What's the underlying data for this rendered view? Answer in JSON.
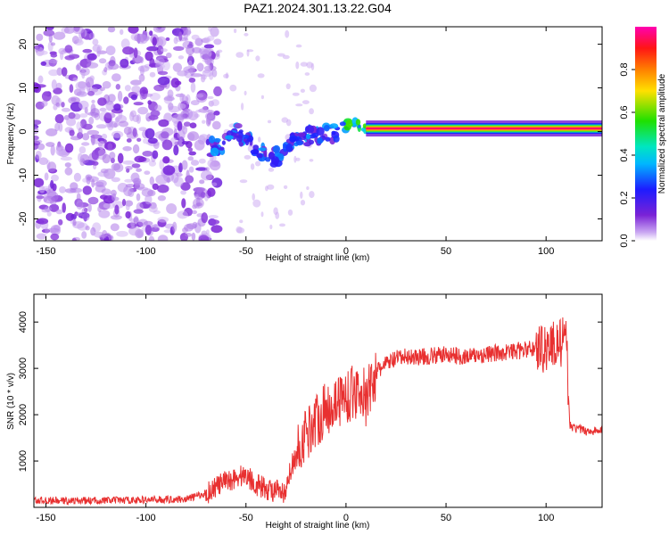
{
  "title": "PAZ1.2024.301.13.22.G04",
  "colors": {
    "spectrogram_low": "#8a2be2",
    "snr_line": "#e83030",
    "frame": "#000000"
  },
  "chart_data": [
    {
      "type": "heatmap",
      "title": "PAZ1.2024.301.13.22.G04",
      "xlabel": "Height of straight line (km)",
      "ylabel": "Frequency (Hz)",
      "xlim": [
        -156,
        128
      ],
      "ylim": [
        -25,
        24
      ],
      "xticks": [
        "-150",
        "-100",
        "-50",
        "0",
        "50",
        "100"
      ],
      "yticks": [
        "20",
        "10",
        "0",
        "-10",
        "-20"
      ],
      "colorbar": {
        "label": "Normalized spectral amplitude",
        "range": [
          0,
          1
        ],
        "ticks": [
          "0.0",
          "0.2",
          "0.4",
          "0.6",
          "0.8"
        ],
        "colormap": "rainbow (purple-blue-cyan-green-yellow-red-magenta)"
      },
      "features": {
        "noise_region_x": [
          -156,
          -68
        ],
        "dispersed_trace": {
          "x": [
            -70,
            -65,
            -60,
            -55,
            -50,
            -45,
            -40,
            -35,
            -30,
            -25,
            -20,
            -15,
            -10,
            -5,
            0,
            3,
            6,
            10,
            20,
            30
          ],
          "y": [
            -3,
            -4,
            -2,
            0,
            -2,
            -4,
            -5,
            -6,
            -4,
            -2,
            -1,
            -1,
            -0.5,
            0,
            1.5,
            2,
            1.5,
            0.8,
            0.6,
            0.6
          ]
        },
        "strong_line": {
          "x": [
            10,
            128
          ],
          "frequency_hz": 0.7,
          "peak_amplitude": 0.95
        }
      }
    },
    {
      "type": "line",
      "xlabel": "Height of straight line (km)",
      "ylabel": "SNR (10 * v/v)",
      "xlim": [
        -156,
        128
      ],
      "ylim": [
        0,
        4600
      ],
      "xticks": [
        "-150",
        "-100",
        "-50",
        "0",
        "50",
        "100"
      ],
      "yticks": [
        "1000",
        "2000",
        "3000",
        "4000"
      ],
      "series": [
        {
          "x": [
            -156,
            -140,
            -120,
            -100,
            -80,
            -70,
            -65,
            -60,
            -55,
            -50,
            -45,
            -40,
            -35,
            -30,
            -28,
            -25,
            -22,
            -20,
            -18,
            -15,
            -10,
            -5,
            0,
            5,
            8,
            10,
            12,
            15,
            20,
            25,
            30,
            40,
            50,
            60,
            70,
            80,
            90,
            95,
            100,
            105,
            110,
            112,
            115,
            120,
            128
          ],
          "y": [
            150,
            140,
            150,
            160,
            180,
            300,
            450,
            550,
            650,
            700,
            500,
            400,
            350,
            250,
            800,
            1100,
            1400,
            1600,
            1700,
            1900,
            2100,
            2300,
            2400,
            2500,
            2600,
            2200,
            2600,
            2900,
            3100,
            3200,
            3250,
            3250,
            3300,
            3250,
            3300,
            3350,
            3400,
            3450,
            3450,
            3550,
            3550,
            1750,
            1700,
            1650,
            1650
          ]
        }
      ]
    }
  ]
}
